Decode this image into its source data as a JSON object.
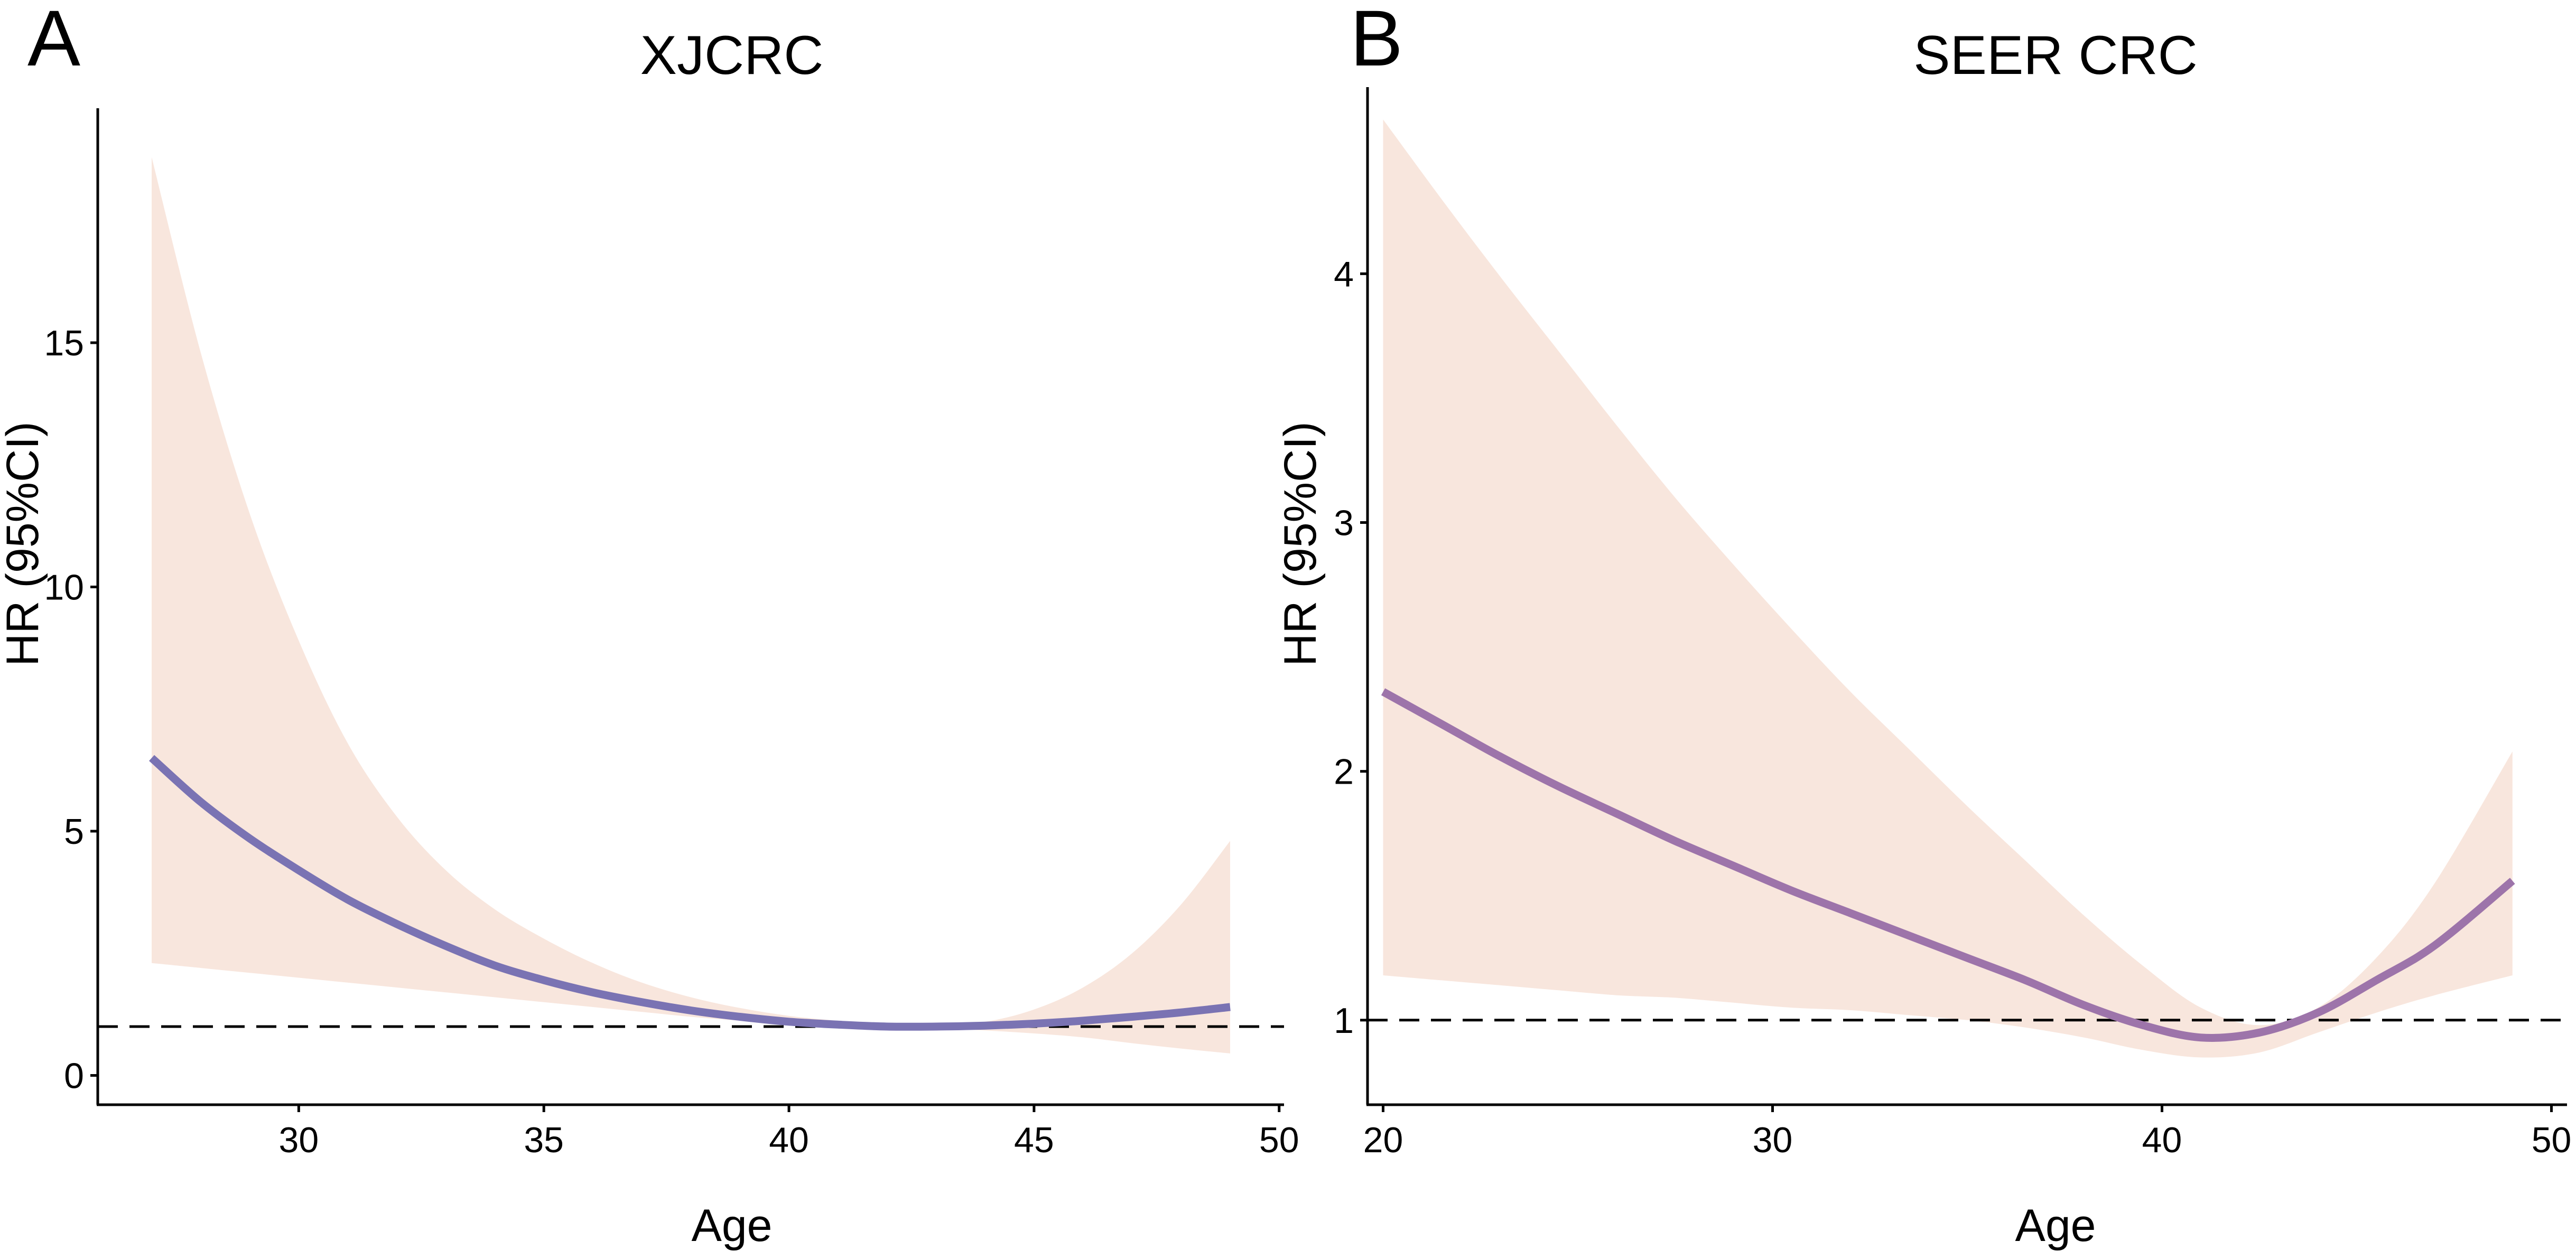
{
  "colors": {
    "ci_band": "#f8e6dd",
    "curve_a": "#7a73b3",
    "curve_b": "#9d74aa",
    "reference_line": "#000000",
    "axis": "#000000"
  },
  "chart_data": [
    {
      "panel": "A",
      "type": "line",
      "title": "XJCRC",
      "xlabel": "Age",
      "ylabel": "HR (95%CI)",
      "xlim": [
        25.9,
        50.1
      ],
      "ylim": [
        -0.6,
        19.8
      ],
      "xticks": [
        30,
        35,
        40,
        45,
        50
      ],
      "yticks": [
        0,
        5,
        10,
        15
      ],
      "xtick_labels": [
        "30",
        "35",
        "40",
        "45",
        "50"
      ],
      "ytick_labels": [
        "0",
        "5",
        "10",
        "15"
      ],
      "reference_line": 1,
      "grid": false,
      "legend": "none",
      "series": [
        {
          "name": "HR",
          "x": [
            27,
            28,
            29,
            30,
            31,
            32,
            33,
            34,
            35,
            36,
            37,
            38,
            39,
            40,
            41,
            42,
            43,
            44,
            45,
            46,
            47,
            48,
            49
          ],
          "y": [
            6.5,
            5.6,
            4.85,
            4.2,
            3.6,
            3.1,
            2.65,
            2.25,
            1.95,
            1.7,
            1.5,
            1.33,
            1.2,
            1.1,
            1.04,
            1.0,
            1.0,
            1.02,
            1.06,
            1.12,
            1.2,
            1.29,
            1.4
          ],
          "lower": [
            2.3,
            2.2,
            2.1,
            2.0,
            1.9,
            1.8,
            1.7,
            1.6,
            1.5,
            1.4,
            1.3,
            1.2,
            1.12,
            1.05,
            1.0,
            0.98,
            0.96,
            0.92,
            0.86,
            0.78,
            0.66,
            0.55,
            0.45
          ],
          "upper": [
            18.8,
            14.8,
            11.5,
            8.9,
            6.8,
            5.3,
            4.2,
            3.4,
            2.8,
            2.3,
            1.9,
            1.6,
            1.38,
            1.22,
            1.12,
            1.06,
            1.05,
            1.1,
            1.35,
            1.8,
            2.5,
            3.5,
            4.8
          ]
        }
      ]
    },
    {
      "panel": "B",
      "type": "line",
      "title": "SEER CRC",
      "xlabel": "Age",
      "ylabel": "HR (95%CI)",
      "xlim": [
        19.6,
        50.4
      ],
      "ylim": [
        0.66,
        4.75
      ],
      "xticks": [
        20,
        30,
        40,
        50
      ],
      "yticks": [
        1,
        2,
        3,
        4
      ],
      "xtick_labels": [
        "20",
        "30",
        "40",
        "50"
      ],
      "ytick_labels": [
        "1",
        "2",
        "3",
        "4"
      ],
      "reference_line": 1,
      "grid": false,
      "legend": "none",
      "series": [
        {
          "name": "HR",
          "x": [
            20,
            21.5,
            23,
            24.5,
            26,
            27.5,
            29,
            30.5,
            32,
            33.5,
            35,
            36.5,
            38,
            39.5,
            41,
            42.5,
            44,
            45.5,
            47,
            49
          ],
          "y": [
            2.32,
            2.19,
            2.06,
            1.94,
            1.83,
            1.72,
            1.62,
            1.52,
            1.43,
            1.34,
            1.25,
            1.16,
            1.06,
            0.98,
            0.93,
            0.95,
            1.03,
            1.16,
            1.3,
            1.56
          ],
          "lower": [
            1.18,
            1.16,
            1.14,
            1.12,
            1.1,
            1.09,
            1.07,
            1.05,
            1.04,
            1.02,
            1.0,
            0.97,
            0.93,
            0.88,
            0.85,
            0.87,
            0.95,
            1.03,
            1.1,
            1.18
          ],
          "upper": [
            4.62,
            4.3,
            3.99,
            3.69,
            3.39,
            3.1,
            2.83,
            2.57,
            2.32,
            2.09,
            1.86,
            1.64,
            1.42,
            1.22,
            1.05,
            0.98,
            1.05,
            1.25,
            1.55,
            2.08
          ]
        }
      ]
    }
  ]
}
